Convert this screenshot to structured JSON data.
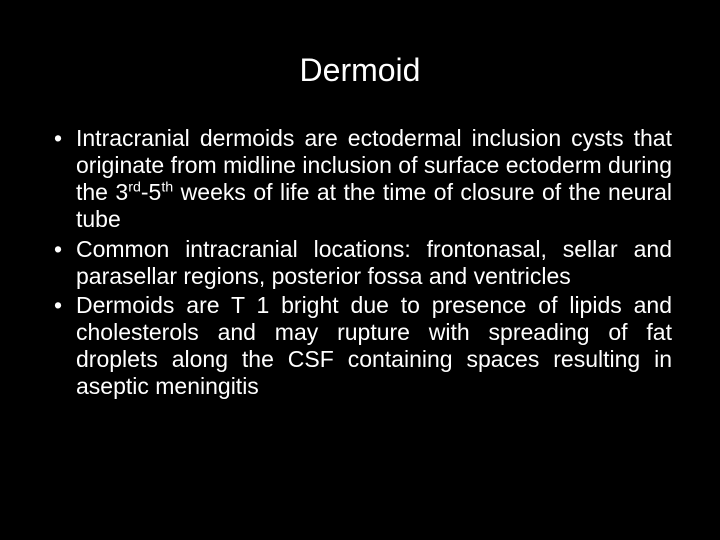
{
  "background_color": "#000000",
  "text_color": "#ffffff",
  "title_fontsize": 32,
  "body_fontsize": 23,
  "line_height": 1.18,
  "text_align": "justify",
  "title": "Dermoid",
  "bullets": [
    {
      "pre": "Intracranial dermoids are ectodermal inclusion cysts that originate from midline inclusion of surface ectoderm during the 3",
      "sup1": "rd",
      "mid": "-5",
      "sup2": "th",
      "post": " weeks of life at the time of closure of the neural tube"
    },
    {
      "text": "Common intracranial locations: frontonasal, sellar and parasellar regions, posterior fossa and ventricles"
    },
    {
      "text": "Dermoids are T 1 bright due to presence of lipids and cholesterols and may rupture with spreading of fat droplets along the CSF containing spaces resulting in aseptic meningitis"
    }
  ]
}
